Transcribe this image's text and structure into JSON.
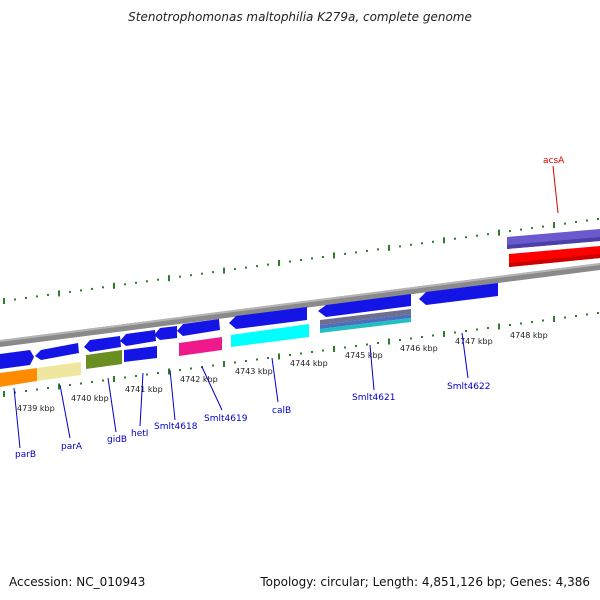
{
  "title": "Stenotrophomonas maltophilia K279a, complete genome",
  "footer": {
    "accession": "Accession: NC_010943",
    "topology": "Topology: circular; Length: 4,851,126 bp; Genes: 4,386"
  },
  "colors": {
    "cds_blue": "#1a1ae6",
    "tick_green": "#2d7d2d",
    "label_blue": "#0000cc",
    "label_red": "#dd0000",
    "backbone": "#8a8a8a"
  },
  "kbp_labels": [
    "4739 kbp",
    "4740 kbp",
    "4741 kbp",
    "4742 kbp",
    "4743 kbp",
    "4744 kbp",
    "4745 kbp",
    "4746 kbp",
    "4747 kbp",
    "4748 kbp"
  ],
  "gene_labels": [
    {
      "text": "parB",
      "color": "blue"
    },
    {
      "text": "parA",
      "color": "blue"
    },
    {
      "text": "gidB",
      "color": "blue"
    },
    {
      "text": "hetI",
      "color": "blue"
    },
    {
      "text": "Smlt4618",
      "color": "blue"
    },
    {
      "text": "Smlt4619",
      "color": "blue"
    },
    {
      "text": "calB",
      "color": "blue"
    },
    {
      "text": "Smlt4621",
      "color": "blue"
    },
    {
      "text": "Smlt4622",
      "color": "blue"
    },
    {
      "text": "acsA",
      "color": "red"
    }
  ]
}
